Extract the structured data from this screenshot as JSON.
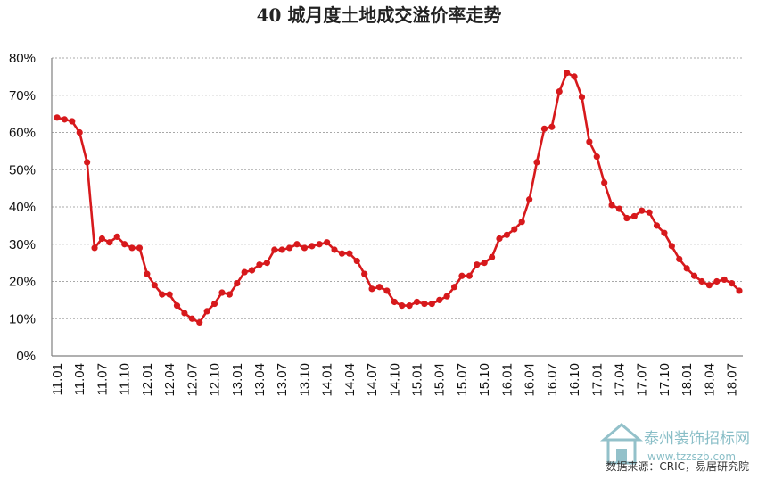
{
  "chart_data": {
    "type": "line",
    "title": "40 城月度土地成交溢价率走势",
    "xlabel": "",
    "ylabel": "",
    "ylim": [
      0,
      80
    ],
    "y_ticks": [
      "0%",
      "10%",
      "20%",
      "30%",
      "40%",
      "50%",
      "60%",
      "70%",
      "80%"
    ],
    "x_ticks": [
      "11.01",
      "11.04",
      "11.07",
      "11.10",
      "12.01",
      "12.04",
      "12.07",
      "12.10",
      "13.01",
      "13.04",
      "13.07",
      "13.10",
      "14.01",
      "14.04",
      "14.07",
      "14.10",
      "15.01",
      "15.04",
      "15.07",
      "15.10",
      "16.01",
      "16.04",
      "16.07",
      "16.10",
      "17.01",
      "17.04",
      "17.07",
      "17.10",
      "18.01",
      "18.04",
      "18.07"
    ],
    "grid": true,
    "legend": "none",
    "color": "#d7191c",
    "series": [
      {
        "values": [
          64,
          63.5,
          63,
          60,
          52,
          29,
          31.5,
          30.5,
          32,
          30,
          29,
          29,
          22,
          19,
          16.5,
          16.5,
          13.5,
          11.5,
          10,
          9,
          12,
          14,
          17,
          16.5,
          19.5,
          22.5,
          23,
          24.5,
          25,
          28.5,
          28.5,
          29,
          30,
          29,
          29.5,
          30,
          30.5,
          28.5,
          27.5,
          27.5,
          25.5,
          22,
          18,
          18.5,
          17.5,
          14.5,
          13.5,
          13.5,
          14.5,
          14,
          14,
          15,
          16,
          18.5,
          21.5,
          21.5,
          24.5,
          25,
          26.5,
          31.5,
          32.5,
          34,
          36,
          42,
          52,
          61,
          61.5,
          71,
          76,
          75,
          69.5,
          57.5,
          53.5,
          46.5,
          40.5,
          39.5,
          37,
          37.5,
          39,
          38.5,
          35,
          33,
          29.5,
          26,
          23.5,
          21.5,
          20,
          19,
          20,
          20.5,
          19.5,
          17.5
        ]
      }
    ]
  },
  "footer": {
    "source": "数据来源：CRIC，易居研究院"
  },
  "watermark": {
    "name": "泰州装饰招标网",
    "url": "www.tzzszb.com"
  }
}
